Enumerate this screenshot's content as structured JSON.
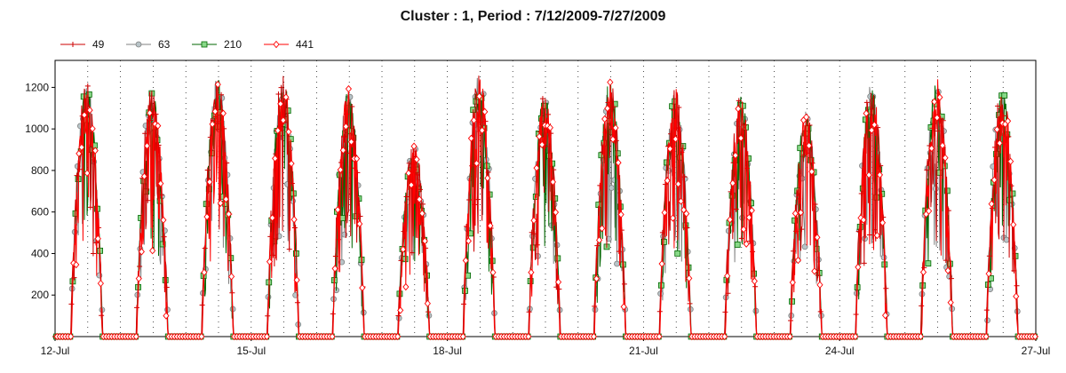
{
  "chart_data": {
    "type": "line",
    "title": "Cluster : 1, Period : 7/12/2009-7/27/2009",
    "xlabel": "",
    "ylabel": "",
    "x_range": [
      "2009-07-12",
      "2009-07-27"
    ],
    "ylim": [
      0,
      1330
    ],
    "x_ticks": [
      {
        "date": "2009-07-12",
        "label": "12-Jul"
      },
      {
        "date": "2009-07-15",
        "label": "15-Jul"
      },
      {
        "date": "2009-07-18",
        "label": "18-Jul"
      },
      {
        "date": "2009-07-21",
        "label": "21-Jul"
      },
      {
        "date": "2009-07-24",
        "label": "24-Jul"
      },
      {
        "date": "2009-07-27",
        "label": "27-Jul"
      }
    ],
    "y_ticks": [
      200,
      400,
      600,
      800,
      1000,
      1200
    ],
    "grid": "vertical-dotted",
    "legend_position": "top-left",
    "daily_peaks": [
      {
        "date": "2009-07-12",
        "peak": 1190
      },
      {
        "date": "2009-07-13",
        "peak": 1160
      },
      {
        "date": "2009-07-14",
        "peak": 1200
      },
      {
        "date": "2009-07-15",
        "peak": 1210
      },
      {
        "date": "2009-07-16",
        "peak": 1150
      },
      {
        "date": "2009-07-17",
        "peak": 900
      },
      {
        "date": "2009-07-18",
        "peak": 1220
      },
      {
        "date": "2009-07-19",
        "peak": 1120
      },
      {
        "date": "2009-07-20",
        "peak": 1190
      },
      {
        "date": "2009-07-21",
        "peak": 1150
      },
      {
        "date": "2009-07-22",
        "peak": 1120
      },
      {
        "date": "2009-07-23",
        "peak": 1050
      },
      {
        "date": "2009-07-24",
        "peak": 1180
      },
      {
        "date": "2009-07-25",
        "peak": 1200
      },
      {
        "date": "2009-07-26",
        "peak": 1150
      }
    ],
    "series": [
      {
        "name": "49",
        "color": "#cc0000",
        "marker": "plus"
      },
      {
        "name": "63",
        "color": "#808080",
        "marker": "circle",
        "fill": "#b8c4c8"
      },
      {
        "name": "210",
        "color": "#006600",
        "marker": "square",
        "fill": "#88d888"
      },
      {
        "name": "441",
        "color": "#ff0000",
        "marker": "diamond",
        "fill": "#ffffff"
      }
    ]
  }
}
